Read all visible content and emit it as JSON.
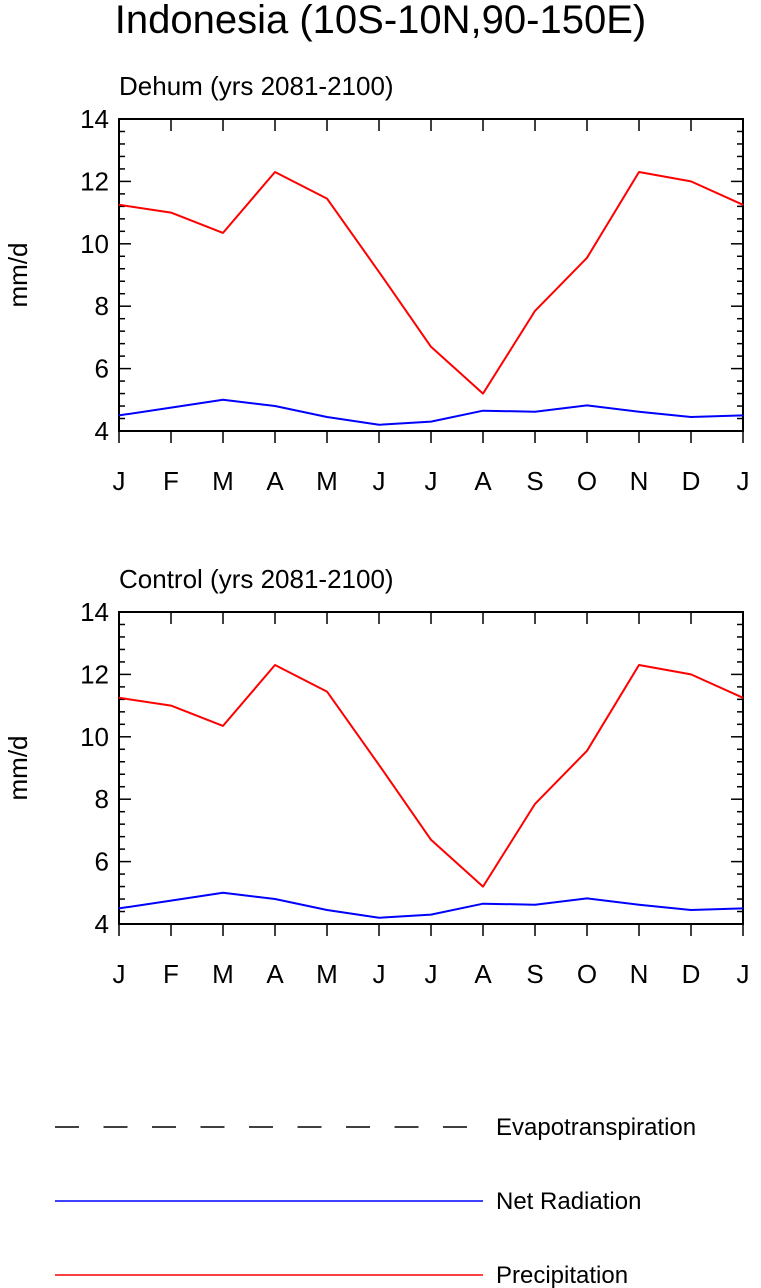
{
  "figure": {
    "title": "Indonesia (10S-10N,90-150E)"
  },
  "chart_data": [
    {
      "type": "line",
      "title": "Dehum (yrs 2081-2100)",
      "xlabel": "",
      "ylabel": "mm/d",
      "categories": [
        "J",
        "F",
        "M",
        "A",
        "M",
        "J",
        "J",
        "A",
        "S",
        "O",
        "N",
        "D",
        "J"
      ],
      "ylim": [
        4,
        14
      ],
      "yticks": [
        4,
        6,
        8,
        10,
        12,
        14
      ],
      "grid": false,
      "series": [
        {
          "name": "Precipitation",
          "color": "#ff0000",
          "values": [
            11.25,
            11.0,
            10.35,
            12.3,
            11.45,
            9.1,
            6.7,
            5.2,
            7.85,
            9.55,
            12.3,
            12.0,
            11.25
          ]
        },
        {
          "name": "Net Radiation",
          "color": "#0000ff",
          "values": [
            4.5,
            4.75,
            5.0,
            4.8,
            4.45,
            4.2,
            4.3,
            4.65,
            4.62,
            4.82,
            4.62,
            4.45,
            4.5
          ]
        }
      ]
    },
    {
      "type": "line",
      "title": "Control (yrs 2081-2100)",
      "xlabel": "",
      "ylabel": "mm/d",
      "categories": [
        "J",
        "F",
        "M",
        "A",
        "M",
        "J",
        "J",
        "A",
        "S",
        "O",
        "N",
        "D",
        "J"
      ],
      "ylim": [
        4,
        14
      ],
      "yticks": [
        4,
        6,
        8,
        10,
        12,
        14
      ],
      "grid": false,
      "series": [
        {
          "name": "Precipitation",
          "color": "#ff0000",
          "values": [
            11.25,
            11.0,
            10.35,
            12.3,
            11.45,
            9.1,
            6.7,
            5.2,
            7.85,
            9.55,
            12.3,
            12.0,
            11.25
          ]
        },
        {
          "name": "Net Radiation",
          "color": "#0000ff",
          "values": [
            4.5,
            4.75,
            5.0,
            4.8,
            4.45,
            4.2,
            4.3,
            4.65,
            4.62,
            4.82,
            4.62,
            4.45,
            4.5
          ]
        }
      ]
    }
  ],
  "legend": {
    "placement": "bottom",
    "items": [
      {
        "label": "Evapotranspiration",
        "color": "#000000",
        "style": "dashed"
      },
      {
        "label": "Net Radiation",
        "color": "#0000ff",
        "style": "solid"
      },
      {
        "label": "Precipitation",
        "color": "#ff0000",
        "style": "solid"
      }
    ]
  }
}
